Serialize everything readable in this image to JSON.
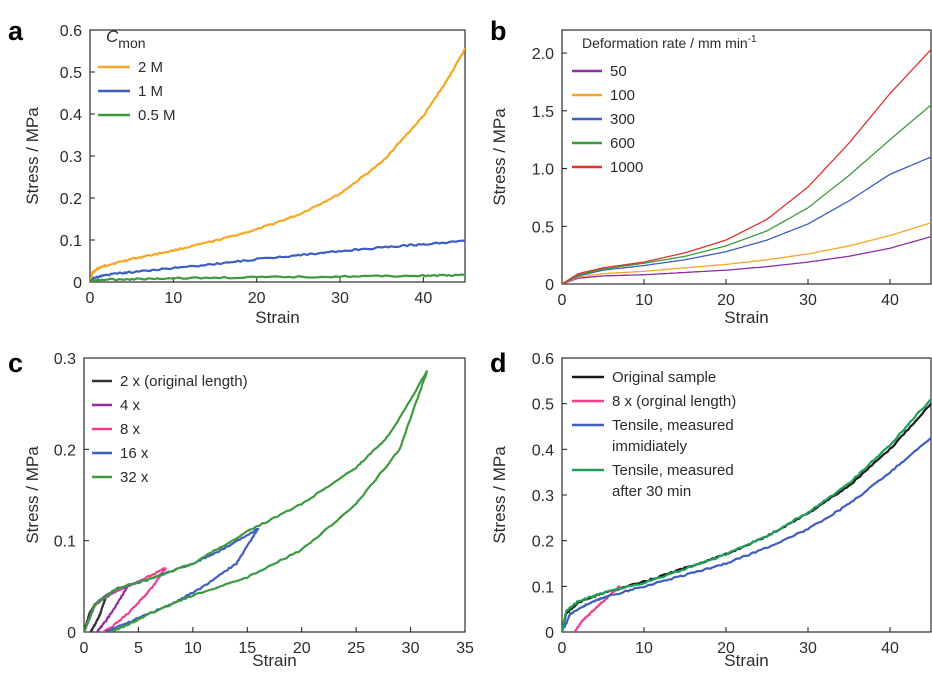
{
  "chart_data": [
    {
      "panel": "a",
      "type": "line",
      "xlabel": "Strain",
      "ylabel": "Stress / MPa",
      "xlim": [
        0,
        45
      ],
      "ylim": [
        0,
        0.6
      ],
      "xticks": [
        0,
        10,
        20,
        30,
        40
      ],
      "yticks": [
        0,
        0.1,
        0.2,
        0.3,
        0.4,
        0.5,
        0.6
      ],
      "ytick_labels": [
        "0",
        "0.1",
        "0.2",
        "0.3",
        "0.4",
        "0.5",
        "0.6"
      ],
      "legend_title_main": "C",
      "legend_title_sub": "mon",
      "legend_position": "top-left",
      "series": [
        {
          "name": "2 M",
          "color": "#f5a623",
          "x": [
            0,
            0.3,
            1,
            2,
            5,
            10,
            15,
            20,
            25,
            30,
            35,
            40,
            43,
            45
          ],
          "y": [
            0,
            0.022,
            0.033,
            0.04,
            0.055,
            0.075,
            0.098,
            0.125,
            0.16,
            0.21,
            0.285,
            0.395,
            0.485,
            0.555
          ]
        },
        {
          "name": "1 M",
          "color": "#3f5fbf",
          "x": [
            0,
            0.5,
            2,
            5,
            10,
            15,
            20,
            25,
            30,
            35,
            40,
            45
          ],
          "y": [
            0,
            0.01,
            0.017,
            0.024,
            0.033,
            0.043,
            0.054,
            0.064,
            0.073,
            0.082,
            0.09,
            0.098
          ]
        },
        {
          "name": "0.5 M",
          "color": "#3e9a3e",
          "x": [
            0,
            1,
            5,
            10,
            20,
            30,
            40,
            45
          ],
          "y": [
            0,
            0.005,
            0.007,
            0.009,
            0.011,
            0.013,
            0.015,
            0.016
          ]
        }
      ]
    },
    {
      "panel": "b",
      "type": "line",
      "xlabel": "Strain",
      "ylabel": "Stress / MPa",
      "xlim": [
        0,
        45
      ],
      "ylim": [
        0,
        2.2
      ],
      "xticks": [
        0,
        10,
        20,
        30,
        40
      ],
      "yticks": [
        0,
        0.5,
        1.0,
        1.5,
        2.0
      ],
      "ytick_labels": [
        "0",
        "0.5",
        "1.0",
        "1.5",
        "2.0"
      ],
      "legend_title": "Deformation rate / mm min",
      "legend_title_sup": "-1",
      "legend_position": "top-left",
      "series": [
        {
          "name": "50",
          "color": "#8e2ea0",
          "x": [
            0,
            2,
            5,
            10,
            15,
            20,
            25,
            30,
            35,
            40,
            45
          ],
          "y": [
            0,
            0.05,
            0.07,
            0.08,
            0.1,
            0.12,
            0.15,
            0.19,
            0.24,
            0.31,
            0.41
          ]
        },
        {
          "name": "100",
          "color": "#f5a623",
          "x": [
            0,
            2,
            5,
            10,
            15,
            20,
            25,
            30,
            35,
            40,
            45
          ],
          "y": [
            0,
            0.06,
            0.09,
            0.11,
            0.14,
            0.17,
            0.21,
            0.26,
            0.33,
            0.42,
            0.53
          ]
        },
        {
          "name": "300",
          "color": "#3f5fbf",
          "x": [
            0,
            2,
            5,
            10,
            15,
            20,
            25,
            30,
            35,
            40,
            45
          ],
          "y": [
            0,
            0.07,
            0.12,
            0.16,
            0.21,
            0.28,
            0.38,
            0.52,
            0.72,
            0.95,
            1.1
          ]
        },
        {
          "name": "600",
          "color": "#3e9a3e",
          "x": [
            0,
            2,
            5,
            10,
            15,
            20,
            25,
            30,
            35,
            40,
            45
          ],
          "y": [
            0,
            0.08,
            0.13,
            0.18,
            0.24,
            0.33,
            0.46,
            0.66,
            0.94,
            1.25,
            1.55
          ]
        },
        {
          "name": "1000",
          "color": "#e0332a",
          "x": [
            0,
            2,
            5,
            10,
            15,
            20,
            25,
            30,
            35,
            40,
            45
          ],
          "y": [
            0,
            0.09,
            0.14,
            0.19,
            0.27,
            0.38,
            0.56,
            0.84,
            1.22,
            1.65,
            2.03
          ]
        }
      ]
    },
    {
      "panel": "c",
      "type": "line",
      "xlabel": "Strain",
      "ylabel": "Stress / MPa",
      "xlim": [
        0,
        35
      ],
      "ylim": [
        0,
        0.3
      ],
      "xticks": [
        0,
        5,
        10,
        15,
        20,
        25,
        30,
        35
      ],
      "yticks": [
        0,
        0.1,
        0.2,
        0.3
      ],
      "ytick_labels": [
        "0",
        "0.1",
        "0.2",
        "0.3"
      ],
      "legend_position": "top-left",
      "series": [
        {
          "name": "2 x (original length)",
          "color": "#333333",
          "x": [
            0,
            0.5,
            1,
            1.5,
            2,
            1.5,
            1,
            0.6
          ],
          "y": [
            0,
            0.02,
            0.03,
            0.035,
            0.038,
            0.02,
            0.008,
            0
          ]
        },
        {
          "name": "4 x",
          "color": "#8e2ea0",
          "x": [
            0,
            1,
            2,
            3,
            4,
            3,
            2,
            1.2
          ],
          "y": [
            0,
            0.03,
            0.04,
            0.045,
            0.05,
            0.03,
            0.012,
            0
          ]
        },
        {
          "name": "8 x",
          "color": "#ee3f8f",
          "x": [
            0,
            1,
            3,
            5,
            7.5,
            6,
            4,
            2.5,
            1.8
          ],
          "y": [
            0,
            0.03,
            0.045,
            0.055,
            0.07,
            0.045,
            0.02,
            0.005,
            0
          ]
        },
        {
          "name": "16 x",
          "color": "#3f5fbf",
          "x": [
            0,
            1,
            3,
            6,
            10,
            13,
            16,
            14,
            11,
            8,
            5,
            3,
            2
          ],
          "y": [
            0,
            0.03,
            0.047,
            0.058,
            0.075,
            0.092,
            0.113,
            0.075,
            0.05,
            0.03,
            0.015,
            0.005,
            0
          ]
        },
        {
          "name": "32 x",
          "color": "#3e9a3e",
          "x": [
            0,
            1,
            3,
            6,
            10,
            15,
            20,
            25,
            28,
            31.5,
            29,
            25,
            20,
            15,
            10,
            6,
            4,
            2.5
          ],
          "y": [
            0,
            0.03,
            0.048,
            0.058,
            0.075,
            0.11,
            0.14,
            0.18,
            0.215,
            0.285,
            0.2,
            0.14,
            0.09,
            0.06,
            0.04,
            0.02,
            0.008,
            0
          ]
        }
      ]
    },
    {
      "panel": "d",
      "type": "line",
      "xlabel": "Strain",
      "ylabel": "Stress / MPa",
      "xlim": [
        0,
        45
      ],
      "ylim": [
        0,
        0.6
      ],
      "xticks": [
        0,
        10,
        20,
        30,
        40
      ],
      "yticks": [
        0,
        0.1,
        0.2,
        0.3,
        0.4,
        0.5,
        0.6
      ],
      "ytick_labels": [
        "0",
        "0.1",
        "0.2",
        "0.3",
        "0.4",
        "0.5",
        "0.6"
      ],
      "legend_position": "top-left",
      "series": [
        {
          "name": "Original sample",
          "color": "#1a1a1a",
          "x": [
            0,
            0.5,
            2,
            5,
            10,
            15,
            20,
            25,
            30,
            35,
            40,
            45
          ],
          "y": [
            0,
            0.04,
            0.065,
            0.085,
            0.11,
            0.14,
            0.17,
            0.21,
            0.26,
            0.32,
            0.4,
            0.5
          ]
        },
        {
          "name": "8 x (orginal length)",
          "color": "#ee3f8f",
          "x": [
            1.5,
            2.5,
            4,
            5.5,
            7
          ],
          "y": [
            0,
            0.025,
            0.05,
            0.075,
            0.1
          ]
        },
        {
          "name": "Tensile, measured immidiately",
          "color": "#3f5fbf",
          "x": [
            0.3,
            1,
            3,
            5,
            10,
            15,
            20,
            25,
            30,
            35,
            40,
            45
          ],
          "y": [
            0.01,
            0.04,
            0.06,
            0.075,
            0.1,
            0.125,
            0.15,
            0.185,
            0.225,
            0.28,
            0.35,
            0.425
          ]
        },
        {
          "name": "Tensile, measured after 30 min",
          "color": "#1fa05a",
          "x": [
            0,
            0.5,
            2,
            5,
            10,
            15,
            20,
            25,
            30,
            35,
            40,
            45
          ],
          "y": [
            0,
            0.045,
            0.068,
            0.085,
            0.108,
            0.138,
            0.17,
            0.21,
            0.262,
            0.325,
            0.41,
            0.51
          ]
        }
      ]
    }
  ],
  "panel_labels": [
    "a",
    "b",
    "c",
    "d"
  ],
  "legend_text": {
    "d_tensile_immediate_line1": "Tensile, measured",
    "d_tensile_immediate_line2": "immidiately",
    "d_tensile_30min_line1": "Tensile, measured",
    "d_tensile_30min_line2": "after 30 min"
  }
}
